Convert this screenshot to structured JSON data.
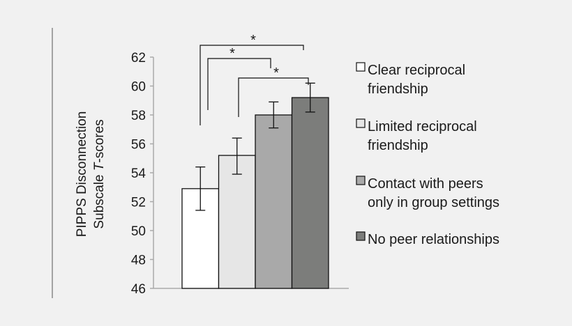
{
  "chart_data": {
    "type": "bar",
    "title": "",
    "xlabel": "",
    "ylabel_line1": "PIPPS Disconnection",
    "ylabel_line2_prefix": "Subscale ",
    "ylabel_line2_italic": "T",
    "ylabel_line2_suffix": "-scores",
    "ylim": [
      46,
      62
    ],
    "yticks": [
      "46",
      "48",
      "50",
      "52",
      "54",
      "56",
      "58",
      "60",
      "62"
    ],
    "legend_position": "right",
    "grid": false,
    "series": [
      {
        "name": "Clear reciprocal friendship",
        "label_lines": [
          "Clear reciprocal",
          "friendship"
        ],
        "value": 52.9,
        "error_low": 51.4,
        "error_high": 54.4,
        "color": "#ffffff"
      },
      {
        "name": "Limited reciprocal friendship",
        "label_lines": [
          "Limited reciprocal",
          "friendship"
        ],
        "value": 55.2,
        "error_low": 53.9,
        "error_high": 56.4,
        "color": "#e6e6e6"
      },
      {
        "name": "Contact with peers only in group settings",
        "label_lines": [
          "Contact with peers",
          "only in group settings"
        ],
        "value": 58.0,
        "error_low": 57.1,
        "error_high": 58.9,
        "color": "#a9a9a9"
      },
      {
        "name": "No peer relationships",
        "label_lines": [
          "No peer relationships"
        ],
        "value": 59.2,
        "error_low": 58.2,
        "error_high": 60.2,
        "color": "#7c7d7b"
      }
    ],
    "significance": [
      {
        "from": 0,
        "to": 3,
        "label": "*"
      },
      {
        "from": 0,
        "to": 2,
        "label": "*"
      },
      {
        "from": 1,
        "to": 3,
        "label": "*"
      }
    ]
  }
}
